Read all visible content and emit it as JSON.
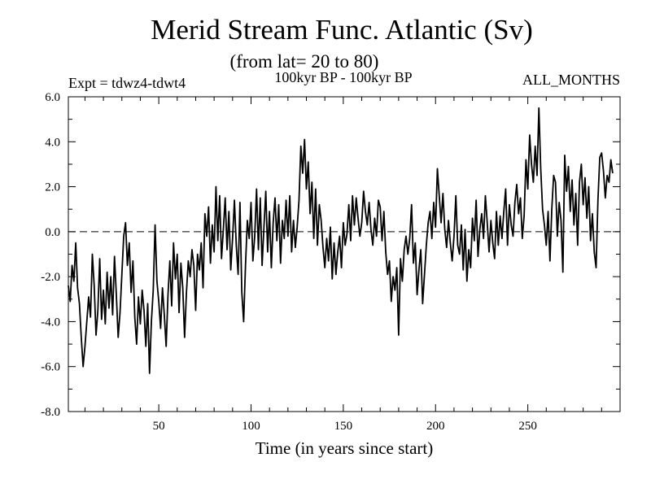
{
  "chart_data": {
    "type": "line",
    "title": "Merid Stream Func. Atlantic (Sv)",
    "subtitle": "(from lat= 20 to 80)",
    "experiment": "Expt = tdwz4-tdwt4",
    "period": "100kyr BP - 100kyr BP",
    "months": "ALL_MONTHS",
    "xlabel": "Time (in years since start)",
    "ylabel": "",
    "xlim": [
      1,
      300
    ],
    "ylim": [
      -8.0,
      6.0
    ],
    "x_ticks": [
      50,
      100,
      150,
      200,
      250
    ],
    "x_tick_labels": [
      "50",
      "100",
      "150",
      "200",
      "250"
    ],
    "y_ticks": [
      -8,
      -6,
      -4,
      -2,
      0,
      2,
      4,
      6
    ],
    "y_tick_labels": [
      "-8.0",
      "-6.0",
      "-4.0",
      "-2.0",
      "0.0",
      "2.0",
      "4.0",
      "6.0"
    ],
    "zero_line": 0.0,
    "series": [
      {
        "name": "Merid Stream Func. Atlantic",
        "color": "#000000",
        "x_start": 1,
        "x_step": 1,
        "values": [
          -2.4,
          -3.1,
          -1.5,
          -2.2,
          -0.5,
          -2.5,
          -3.2,
          -4.7,
          -6.0,
          -5.1,
          -4.0,
          -2.9,
          -3.8,
          -1.0,
          -2.4,
          -4.6,
          -3.5,
          -1.2,
          -3.9,
          -2.6,
          -4.1,
          -1.8,
          -3.4,
          -2.0,
          -3.7,
          -1.1,
          -2.8,
          -4.7,
          -3.6,
          -1.9,
          -0.2,
          0.4,
          -1.5,
          -0.5,
          -2.7,
          -1.3,
          -3.8,
          -5.0,
          -2.9,
          -4.1,
          -2.6,
          -3.5,
          -5.1,
          -3.2,
          -6.3,
          -4.0,
          -2.6,
          0.3,
          -2.2,
          -3.1,
          -4.3,
          -2.5,
          -3.7,
          -5.1,
          -2.8,
          -1.3,
          -3.3,
          -0.5,
          -2.1,
          -1.0,
          -3.6,
          -1.4,
          -2.5,
          -4.7,
          -2.7,
          -1.3,
          -2.0,
          -0.8,
          -1.5,
          -3.5,
          -1.0,
          -1.7,
          -0.5,
          -2.5,
          0.8,
          -0.2,
          1.1,
          -1.4,
          0.3,
          -0.9,
          2.0,
          -0.4,
          1.6,
          -1.2,
          0.1,
          1.5,
          -0.8,
          0.9,
          -1.7,
          -0.3,
          1.4,
          -0.6,
          -1.9,
          1.3,
          -2.7,
          -4.0,
          -1.5,
          0.5,
          -0.3,
          1.3,
          -1.3,
          -0.2,
          1.9,
          -0.8,
          1.5,
          -1.5,
          0.2,
          1.8,
          -0.9,
          0.9,
          -1.6,
          0.4,
          1.5,
          -0.4,
          1.2,
          -1.4,
          0.5,
          -0.3,
          1.4,
          -0.2,
          1.6,
          -0.9,
          0.5,
          -0.7,
          0.2,
          1.4,
          3.8,
          2.6,
          4.1,
          1.9,
          3.1,
          0.8,
          2.2,
          -0.3,
          1.9,
          -0.6,
          1.2,
          0.5,
          -0.7,
          -1.6,
          -0.3,
          -1.3,
          0.2,
          -2.1,
          -0.5,
          -1.9,
          -0.9,
          -0.2,
          -1.6,
          0.4,
          -0.6,
          -0.1,
          1.2,
          -0.4,
          1.6,
          0.3,
          1.5,
          0.6,
          -0.2,
          0.4,
          1.8,
          0.9,
          0.3,
          1.3,
          0.1,
          -0.6,
          0.6,
          -0.2,
          1.4,
          1.1,
          -0.4,
          0.9,
          -0.9,
          -1.9,
          -1.3,
          -3.1,
          -2.0,
          -2.6,
          -1.6,
          -4.6,
          -1.2,
          -2.2,
          -0.8,
          -0.2,
          -1.0,
          -0.3,
          1.2,
          -1.4,
          -0.5,
          -2.8,
          -1.7,
          -0.8,
          -3.2,
          -1.9,
          -0.6,
          0.4,
          0.9,
          -0.3,
          1.3,
          0.2,
          2.8,
          1.6,
          0.4,
          1.7,
          0.1,
          -0.7,
          0.5,
          -0.5,
          -1.3,
          -0.2,
          1.6,
          -0.6,
          -1.0,
          0.3,
          -1.7,
          0.1,
          -2.2,
          -0.8,
          -1.6,
          0.6,
          -0.4,
          1.4,
          -1.1,
          0.1,
          0.8,
          -0.3,
          1.6,
          0.4,
          -0.9,
          0.5,
          -0.5,
          -1.2,
          0.9,
          -0.6,
          0.7,
          -0.3,
          0.9,
          1.9,
          -0.6,
          1.2,
          0.3,
          -0.2,
          1.3,
          2.1,
          0.8,
          1.5,
          -0.3,
          0.7,
          3.2,
          1.9,
          4.3,
          3.0,
          2.2,
          3.8,
          2.5,
          5.5,
          2.8,
          1.0,
          0.3,
          -0.6,
          0.9,
          -1.3,
          1.0,
          2.5,
          2.2,
          -0.2,
          1.3,
          0.5,
          -1.8,
          3.4,
          1.8,
          2.9,
          0.9,
          2.3,
          0.3,
          1.7,
          -0.6,
          2.2,
          3.0,
          1.2,
          2.4,
          0.6,
          2.0,
          -0.4,
          0.8,
          -0.9,
          -1.6,
          1.4,
          3.3,
          3.5,
          2.7,
          1.5,
          2.5,
          2.2,
          3.2,
          2.6
        ]
      }
    ]
  }
}
